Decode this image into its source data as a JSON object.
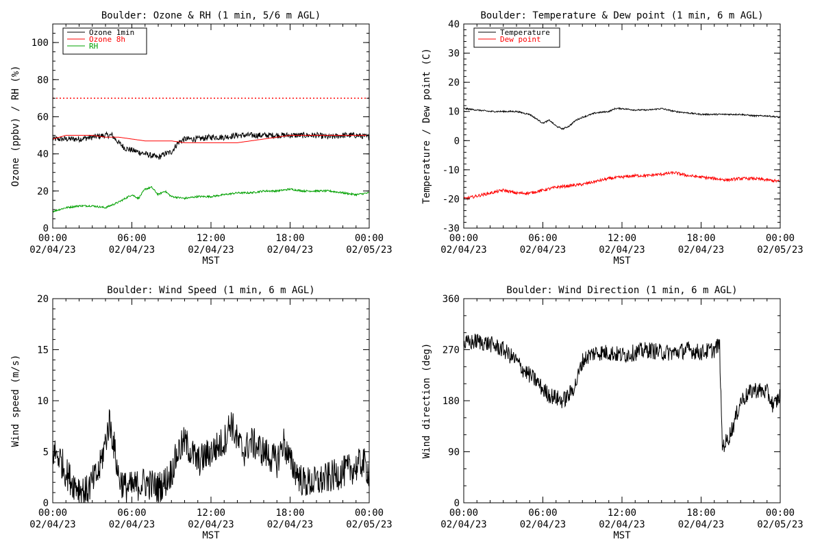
{
  "page": {
    "time_axis": {
      "tick_times": [
        "00:00",
        "06:00",
        "12:00",
        "18:00",
        "00:00"
      ],
      "tick_dates": [
        "02/04/23",
        "02/04/23",
        "02/04/23",
        "02/04/23",
        "02/05/23"
      ],
      "xlabel": "MST",
      "range_hours": [
        0,
        24
      ]
    }
  },
  "chart_data": [
    {
      "id": "ozone_rh",
      "type": "line",
      "title": "Boulder: Ozone & RH (1 min, 5/6 m AGL)",
      "ylabel": "Ozone (ppbv) / RH (%)",
      "ylim": [
        0,
        110
      ],
      "yticks": [
        0,
        20,
        40,
        60,
        80,
        100
      ],
      "y_minor_step": 5,
      "xlabel": "MST",
      "legend": {
        "placement": "top-left",
        "entries": [
          "Ozone 1min",
          "Ozone 8h",
          "RH"
        ]
      },
      "reference_line": {
        "y": 70,
        "color": "#ff0000",
        "style": "dotted"
      },
      "series": [
        {
          "name": "Ozone 1min",
          "color": "#000000",
          "noise": 1.6,
          "x": [
            0,
            1,
            2,
            3,
            4,
            4.5,
            5,
            5.5,
            6,
            6.5,
            7,
            7.5,
            8,
            8.5,
            9,
            9.5,
            10,
            11,
            12,
            13,
            14,
            15,
            16,
            17,
            18,
            19,
            20,
            21,
            22,
            23,
            24
          ],
          "y": [
            48,
            48,
            48,
            49,
            50,
            50,
            46,
            43,
            42,
            41,
            40,
            39,
            38,
            40,
            41,
            46,
            48,
            48,
            49,
            49,
            50,
            50,
            50,
            50,
            50,
            50,
            50,
            49,
            50,
            50,
            49
          ]
        },
        {
          "name": "Ozone 8h",
          "color": "#ff0000",
          "noise": 0,
          "x": [
            0,
            1,
            2,
            3,
            4,
            5,
            6,
            7,
            8,
            9,
            10,
            11,
            12,
            13,
            14,
            15,
            16,
            17,
            18,
            19,
            20,
            21,
            22,
            23,
            24
          ],
          "y": [
            48,
            50,
            50,
            50,
            49,
            49,
            48,
            47,
            47,
            47,
            46,
            46,
            46,
            46,
            46,
            47,
            48,
            49,
            50,
            50,
            50,
            50,
            50,
            50,
            50
          ]
        },
        {
          "name": "RH",
          "color": "#00a000",
          "noise": 0.5,
          "x": [
            0,
            1,
            2,
            3,
            4,
            5,
            6,
            6.5,
            7,
            7.5,
            8,
            8.5,
            9,
            10,
            11,
            12,
            13,
            14,
            15,
            16,
            17,
            18,
            19,
            20,
            21,
            22,
            23,
            24
          ],
          "y": [
            9,
            11,
            12,
            12,
            11,
            14,
            18,
            16,
            21,
            22,
            18,
            20,
            17,
            16,
            17,
            17,
            18,
            19,
            19,
            20,
            20,
            21,
            20,
            20,
            20,
            19,
            18,
            19
          ]
        }
      ]
    },
    {
      "id": "temp_dew",
      "type": "line",
      "title": "Boulder: Temperature & Dew point (1 min, 6 m AGL)",
      "ylabel": "Temperature / Dew point (C)",
      "ylim": [
        -30,
        40
      ],
      "yticks": [
        -30,
        -20,
        -10,
        0,
        10,
        20,
        30,
        40
      ],
      "y_minor_step": 2,
      "xlabel": "MST",
      "legend": {
        "placement": "top-left",
        "entries": [
          "Temperature",
          "Dew point"
        ]
      },
      "series": [
        {
          "name": "Temperature",
          "color": "#000000",
          "noise": 0.25,
          "x": [
            0,
            1,
            2,
            3,
            4,
            5,
            5.5,
            6,
            6.5,
            7,
            7.5,
            8,
            8.5,
            9,
            10,
            11,
            11.5,
            12,
            13,
            14,
            15,
            16,
            17,
            18,
            19,
            20,
            21,
            22,
            23,
            24
          ],
          "y": [
            11,
            10.5,
            10,
            10,
            10,
            9,
            7.5,
            6,
            7,
            5,
            4,
            5,
            7,
            8,
            9.5,
            10,
            11,
            11,
            10.5,
            10.5,
            11,
            10,
            9.5,
            9,
            9,
            9,
            9,
            8.5,
            8.5,
            8
          ]
        },
        {
          "name": "Dew point",
          "color": "#ff0000",
          "noise": 0.5,
          "x": [
            0,
            1,
            2,
            3,
            4,
            5,
            6,
            7,
            8,
            9,
            10,
            11,
            12,
            13,
            14,
            15,
            16,
            17,
            18,
            19,
            20,
            21,
            22,
            23,
            24
          ],
          "y": [
            -20,
            -19,
            -18,
            -17,
            -18,
            -18,
            -17,
            -16,
            -15.5,
            -15,
            -14,
            -13,
            -12.5,
            -12,
            -12,
            -11.5,
            -11,
            -12,
            -12.5,
            -13,
            -13.5,
            -13,
            -13,
            -13.5,
            -14
          ]
        }
      ]
    },
    {
      "id": "wind_speed",
      "type": "line",
      "title": "Boulder: Wind Speed (1 min, 6 m AGL)",
      "ylabel": "Wind speed (m/s)",
      "ylim": [
        0,
        20
      ],
      "yticks": [
        0,
        5,
        10,
        15,
        20
      ],
      "y_minor_step": 1,
      "xlabel": "MST",
      "series": [
        {
          "name": "",
          "color": "#000000",
          "noise": 1.6,
          "floor": 0,
          "x": [
            0,
            0.5,
            1,
            1.5,
            2,
            2.5,
            3,
            3.5,
            4,
            4.3,
            4.6,
            5,
            5.5,
            6,
            7,
            8,
            8.5,
            9,
            9.5,
            10,
            10.5,
            11,
            12,
            13,
            13.5,
            14,
            14.5,
            15,
            16,
            17,
            17.5,
            18,
            19,
            20,
            21,
            22,
            23,
            23.5,
            24
          ],
          "y": [
            5,
            4.5,
            3,
            2,
            1.5,
            1,
            2,
            3,
            6,
            8,
            6,
            2.5,
            1.5,
            1.5,
            2,
            1.5,
            2,
            3,
            5,
            6,
            5,
            4,
            5,
            6,
            8,
            6,
            5,
            6,
            5,
            4,
            6,
            4,
            2,
            2,
            2.5,
            3,
            3.5,
            4,
            3
          ]
        }
      ]
    },
    {
      "id": "wind_dir",
      "type": "line",
      "title": "Boulder: Wind Direction (1 min, 6 m AGL)",
      "ylabel": "Wind direction (deg)",
      "ylim": [
        0,
        360
      ],
      "yticks": [
        0,
        90,
        180,
        270,
        360
      ],
      "y_minor_step": 30,
      "xlabel": "MST",
      "series": [
        {
          "name": "",
          "color": "#000000",
          "noise": 15,
          "floor": 0,
          "ceil": 360,
          "x": [
            0,
            1,
            2,
            2.5,
            3,
            3.5,
            4,
            4.5,
            5,
            5.5,
            6,
            6.5,
            7,
            7.5,
            8,
            8.5,
            9,
            9.5,
            10,
            11,
            12,
            13,
            14,
            15,
            16,
            17,
            18,
            19,
            19.4,
            19.6,
            20,
            20.5,
            21,
            22,
            23,
            23.5,
            24
          ],
          "y": [
            280,
            285,
            280,
            275,
            270,
            260,
            250,
            235,
            225,
            215,
            200,
            190,
            185,
            180,
            190,
            210,
            250,
            260,
            265,
            265,
            260,
            265,
            270,
            265,
            265,
            270,
            265,
            270,
            280,
            100,
            110,
            140,
            180,
            200,
            195,
            170,
            190
          ]
        }
      ]
    }
  ]
}
